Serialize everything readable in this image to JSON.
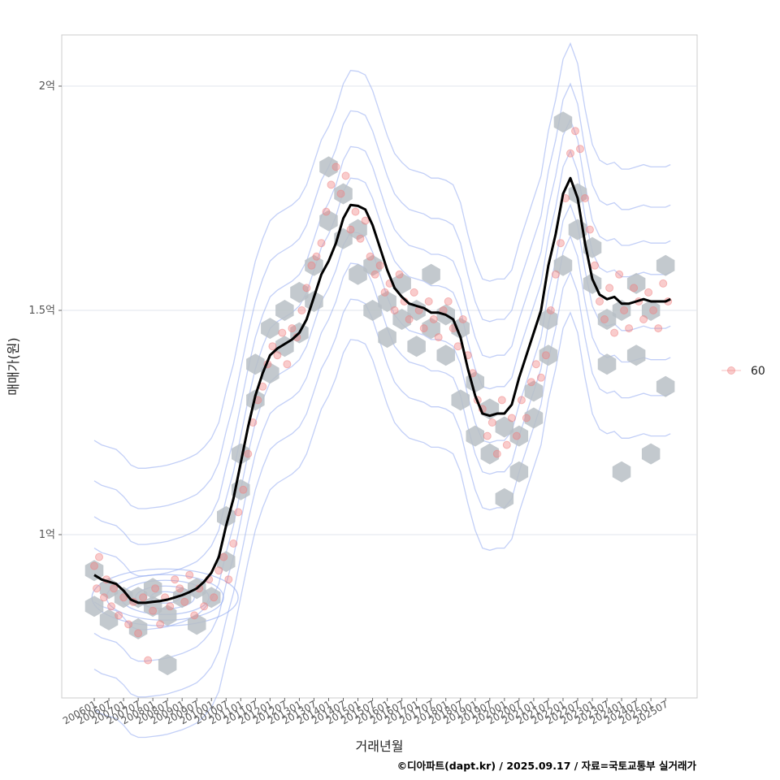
{
  "chart_data": {
    "type": "scatter",
    "xlabel": "거래년월",
    "ylabel": "매매가(원)",
    "caption": "©디아파트(dapt.kr) / 2025.09.17 / 자료=국토교통부 실거래가",
    "x_tick_labels": [
      "200601",
      "200607",
      "200701",
      "200707",
      "200801",
      "200807",
      "200901",
      "200907",
      "201001",
      "201007",
      "201101",
      "201107",
      "201201",
      "201207",
      "201301",
      "201307",
      "201401",
      "201407",
      "201501",
      "201507",
      "201601",
      "201607",
      "201701",
      "201707",
      "201801",
      "201807",
      "201901",
      "201907",
      "202001",
      "202007",
      "202101",
      "202107",
      "202201",
      "202207",
      "202301",
      "202307",
      "202401",
      "202407",
      "202501",
      "202507"
    ],
    "y_ticks": [
      {
        "label": "1억",
        "value": 100000000
      },
      {
        "label": "1.5억",
        "value": 150000000
      },
      {
        "label": "2억",
        "value": 200000000
      }
    ],
    "xlim": [
      "2005-10",
      "2026-12"
    ],
    "ylim": [
      64000000,
      212000000
    ],
    "legend": {
      "position": "right",
      "entries": [
        {
          "label": "60",
          "color": "#f08080"
        }
      ]
    },
    "grid": true,
    "colors": {
      "points": "#f08080",
      "hex": "#b8bfc6",
      "trend": "#000000",
      "contour": "#8fa8f0",
      "grid": "#e2e6ec",
      "panel_border": "#cccccc"
    },
    "trend_line": {
      "name": "moving average",
      "x": [
        "2006-01",
        "2006-04",
        "2006-07",
        "2006-10",
        "2007-01",
        "2007-04",
        "2007-07",
        "2007-10",
        "2008-01",
        "2008-04",
        "2008-07",
        "2008-10",
        "2009-01",
        "2009-04",
        "2009-07",
        "2009-10",
        "2010-01",
        "2010-04",
        "2010-07",
        "2010-10",
        "2011-01",
        "2011-04",
        "2011-07",
        "2011-10",
        "2012-01",
        "2012-04",
        "2012-07",
        "2012-10",
        "2013-01",
        "2013-04",
        "2013-07",
        "2013-10",
        "2014-01",
        "2014-04",
        "2014-07",
        "2014-10",
        "2015-01",
        "2015-04",
        "2015-07",
        "2015-10",
        "2016-01",
        "2016-04",
        "2016-07",
        "2016-10",
        "2017-01",
        "2017-04",
        "2017-07",
        "2017-10",
        "2018-01",
        "2018-04",
        "2018-07",
        "2018-10",
        "2019-01",
        "2019-04",
        "2019-07",
        "2019-10",
        "2020-01",
        "2020-04",
        "2020-07",
        "2020-10",
        "2021-01",
        "2021-04",
        "2021-07",
        "2021-10",
        "2022-01",
        "2022-04",
        "2022-07",
        "2022-10",
        "2023-01",
        "2023-04",
        "2023-07",
        "2023-10",
        "2024-01",
        "2024-04",
        "2024-07",
        "2024-10",
        "2025-01",
        "2025-04",
        "2025-07",
        "2025-09"
      ],
      "y": [
        91000000,
        90000000,
        89500000,
        89000000,
        87500000,
        85500000,
        84800000,
        84800000,
        85000000,
        85200000,
        85500000,
        86000000,
        86500000,
        87200000,
        88000000,
        89500000,
        91500000,
        95000000,
        102000000,
        108000000,
        116000000,
        124000000,
        131000000,
        136000000,
        140000000,
        141500000,
        142500000,
        143500000,
        145000000,
        148000000,
        153000000,
        158000000,
        161000000,
        165000000,
        170500000,
        173500000,
        173300000,
        172500000,
        169000000,
        164000000,
        159000000,
        155000000,
        153000000,
        151500000,
        151000000,
        150500000,
        149500000,
        149500000,
        149000000,
        148000000,
        144000000,
        137000000,
        131000000,
        127000000,
        126500000,
        127000000,
        127000000,
        129000000,
        135000000,
        140000000,
        145000000,
        150000000,
        160000000,
        167000000,
        176000000,
        179500000,
        175000000,
        165000000,
        157000000,
        153500000,
        152500000,
        153000000,
        151500000,
        151500000,
        152000000,
        152500000,
        152000000,
        152000000,
        152000000,
        152500000
      ]
    },
    "scatter_points": {
      "name": "60",
      "x": [
        "2006-01",
        "2006-02",
        "2006-03",
        "2006-05",
        "2006-06",
        "2006-08",
        "2006-09",
        "2006-11",
        "2007-01",
        "2007-03",
        "2007-05",
        "2007-07",
        "2007-09",
        "2007-11",
        "2008-01",
        "2008-02",
        "2008-04",
        "2008-06",
        "2008-08",
        "2008-10",
        "2008-12",
        "2009-02",
        "2009-04",
        "2009-06",
        "2009-08",
        "2009-10",
        "2009-12",
        "2010-02",
        "2010-04",
        "2010-06",
        "2010-08",
        "2010-10",
        "2010-12",
        "2011-02",
        "2011-04",
        "2011-06",
        "2011-08",
        "2011-10",
        "2011-12",
        "2012-02",
        "2012-04",
        "2012-06",
        "2012-08",
        "2012-10",
        "2012-12",
        "2013-02",
        "2013-04",
        "2013-06",
        "2013-08",
        "2013-10",
        "2013-12",
        "2014-02",
        "2014-04",
        "2014-06",
        "2014-08",
        "2014-10",
        "2014-12",
        "2015-02",
        "2015-04",
        "2015-06",
        "2015-08",
        "2015-10",
        "2015-12",
        "2016-02",
        "2016-04",
        "2016-06",
        "2016-08",
        "2016-10",
        "2016-12",
        "2017-02",
        "2017-04",
        "2017-06",
        "2017-08",
        "2017-10",
        "2017-12",
        "2018-02",
        "2018-04",
        "2018-06",
        "2018-08",
        "2018-10",
        "2018-12",
        "2019-02",
        "2019-04",
        "2019-06",
        "2019-08",
        "2019-10",
        "2019-12",
        "2020-02",
        "2020-04",
        "2020-06",
        "2020-08",
        "2020-10",
        "2020-12",
        "2021-02",
        "2021-04",
        "2021-06",
        "2021-08",
        "2021-10",
        "2021-12",
        "2022-02",
        "2022-04",
        "2022-06",
        "2022-08",
        "2022-10",
        "2022-12",
        "2023-02",
        "2023-04",
        "2023-06",
        "2023-08",
        "2023-10",
        "2023-12",
        "2024-02",
        "2024-04",
        "2024-06",
        "2024-08",
        "2024-10",
        "2024-12",
        "2025-02",
        "2025-04",
        "2025-06",
        "2025-08"
      ],
      "y": [
        93000000,
        88000000,
        95000000,
        86000000,
        90000000,
        84000000,
        88000000,
        82000000,
        86000000,
        80000000,
        85000000,
        78000000,
        86000000,
        72000000,
        83000000,
        88000000,
        80000000,
        86000000,
        84000000,
        90000000,
        88000000,
        85000000,
        91000000,
        82000000,
        88000000,
        84000000,
        90000000,
        86000000,
        92000000,
        95000000,
        90000000,
        98000000,
        105000000,
        110000000,
        118000000,
        125000000,
        130000000,
        133000000,
        138000000,
        142000000,
        140000000,
        145000000,
        138000000,
        146000000,
        144000000,
        150000000,
        155000000,
        160000000,
        162000000,
        165000000,
        172000000,
        178000000,
        182000000,
        176000000,
        180000000,
        168000000,
        172000000,
        166000000,
        170000000,
        162000000,
        158000000,
        160000000,
        154000000,
        156000000,
        150000000,
        158000000,
        152000000,
        148000000,
        154000000,
        150000000,
        146000000,
        152000000,
        148000000,
        144000000,
        150000000,
        152000000,
        146000000,
        142000000,
        148000000,
        140000000,
        136000000,
        130000000,
        128000000,
        122000000,
        125000000,
        118000000,
        130000000,
        120000000,
        126000000,
        122000000,
        130000000,
        126000000,
        134000000,
        138000000,
        135000000,
        140000000,
        150000000,
        158000000,
        165000000,
        175000000,
        185000000,
        190000000,
        186000000,
        175000000,
        168000000,
        160000000,
        152000000,
        148000000,
        155000000,
        145000000,
        158000000,
        150000000,
        146000000,
        155000000,
        152000000,
        148000000,
        154000000,
        150000000,
        146000000,
        156000000,
        152000000
      ]
    },
    "hexbins": {
      "x": [
        "2006-01",
        "2006-01",
        "2006-07",
        "2006-07",
        "2007-01",
        "2007-07",
        "2007-07",
        "2008-01",
        "2008-01",
        "2008-07",
        "2008-07",
        "2009-01",
        "2009-07",
        "2009-07",
        "2010-01",
        "2010-07",
        "2010-07",
        "2011-01",
        "2011-01",
        "2011-07",
        "2011-07",
        "2012-01",
        "2012-01",
        "2012-07",
        "2012-07",
        "2013-01",
        "2013-01",
        "2013-07",
        "2013-07",
        "2014-01",
        "2014-01",
        "2014-07",
        "2014-07",
        "2015-01",
        "2015-01",
        "2015-07",
        "2015-07",
        "2016-01",
        "2016-01",
        "2016-07",
        "2016-07",
        "2017-01",
        "2017-01",
        "2017-07",
        "2017-07",
        "2018-01",
        "2018-01",
        "2018-07",
        "2018-07",
        "2019-01",
        "2019-01",
        "2019-07",
        "2019-07",
        "2020-01",
        "2020-01",
        "2020-07",
        "2020-07",
        "2021-01",
        "2021-01",
        "2021-07",
        "2021-07",
        "2022-01",
        "2022-01",
        "2022-07",
        "2022-07",
        "2023-01",
        "2023-01",
        "2023-07",
        "2023-07",
        "2024-01",
        "2024-01",
        "2024-07",
        "2024-07",
        "2025-01",
        "2025-01",
        "2025-07",
        "2025-07"
      ],
      "y": [
        84000000,
        92000000,
        88000000,
        81000000,
        86000000,
        79000000,
        86000000,
        84000000,
        88000000,
        71000000,
        82000000,
        86000000,
        80000000,
        88000000,
        86000000,
        94000000,
        104000000,
        110000000,
        118000000,
        130000000,
        138000000,
        136000000,
        146000000,
        142000000,
        150000000,
        145000000,
        154000000,
        160000000,
        152000000,
        170000000,
        182000000,
        176000000,
        166000000,
        168000000,
        158000000,
        160000000,
        150000000,
        152000000,
        144000000,
        156000000,
        148000000,
        150000000,
        142000000,
        158000000,
        146000000,
        149000000,
        140000000,
        146000000,
        130000000,
        134000000,
        122000000,
        128000000,
        118000000,
        124000000,
        108000000,
        122000000,
        114000000,
        132000000,
        126000000,
        140000000,
        148000000,
        160000000,
        192000000,
        176000000,
        168000000,
        156000000,
        164000000,
        148000000,
        138000000,
        150000000,
        114000000,
        156000000,
        140000000,
        150000000,
        118000000,
        160000000,
        133000000
      ]
    },
    "density_contours": {
      "levels": 12
    }
  }
}
